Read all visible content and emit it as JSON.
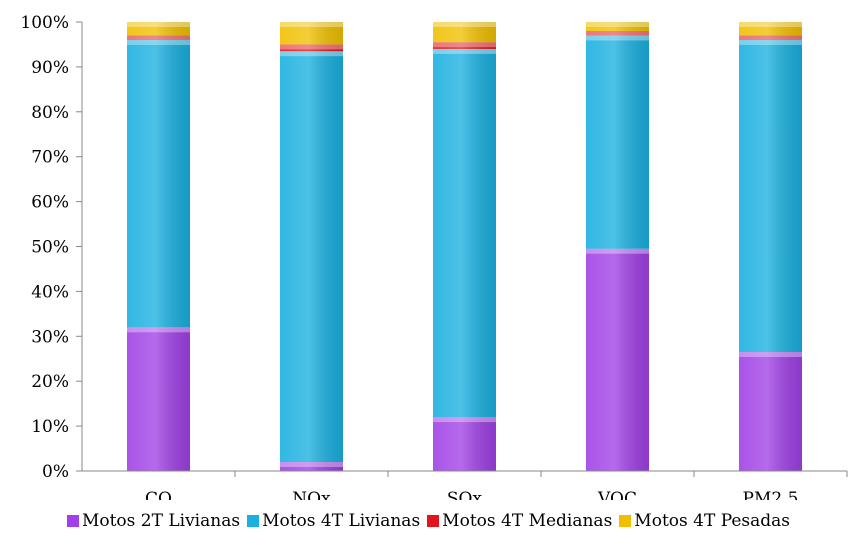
{
  "chart_data": {
    "type": "bar",
    "stacked": true,
    "percent": true,
    "categories": [
      "CO",
      "NOx",
      "SOx",
      "VOC",
      "PM2,5"
    ],
    "series": [
      {
        "name": "Motos 2T Livianas",
        "color": "#a040e6",
        "values": [
          32,
          2,
          12,
          49.5,
          26.5
        ]
      },
      {
        "name": "Motos 4T Livianas",
        "color": "#1ab0e0",
        "values": [
          64,
          91.5,
          82,
          47.5,
          69.5
        ]
      },
      {
        "name": "Motos 4T Medianas",
        "color": "#e0161c",
        "values": [
          1,
          1.5,
          1.5,
          1,
          1
        ]
      },
      {
        "name": "Motos 4T Pesadas",
        "color": "#f0c000",
        "values": [
          3,
          5,
          4.5,
          2,
          3
        ]
      }
    ],
    "yticks": [
      "0%",
      "10%",
      "20%",
      "30%",
      "40%",
      "50%",
      "60%",
      "70%",
      "80%",
      "90%",
      "100%"
    ],
    "ylim": [
      0,
      100
    ],
    "grid": false,
    "legend_position": "bottom"
  }
}
